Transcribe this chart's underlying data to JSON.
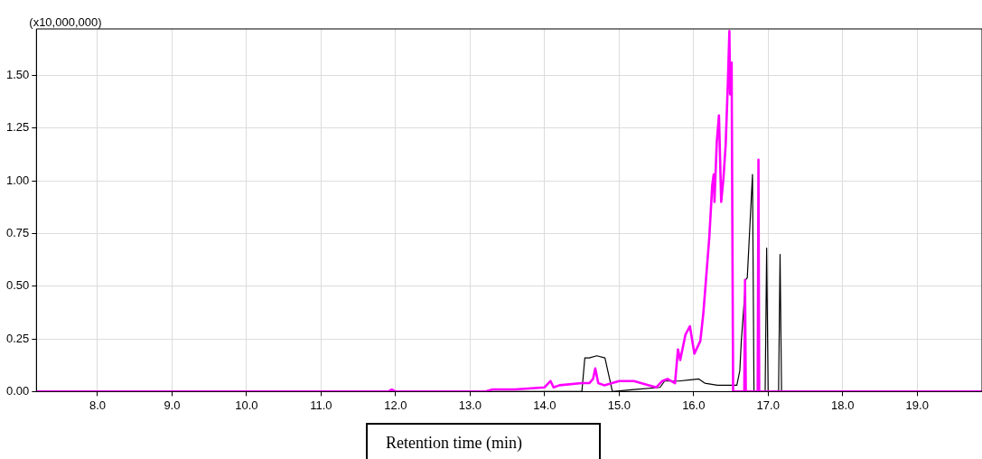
{
  "chart_data": {
    "type": "line",
    "ylabel": "(x10,000,000)",
    "xlabel": "Retention time (min)",
    "xlim": [
      7.18,
      19.87
    ],
    "ylim": [
      0,
      1.72
    ],
    "xticks": [
      {
        "value": 8,
        "label": "8.0"
      },
      {
        "value": 9,
        "label": "9.0"
      },
      {
        "value": 10,
        "label": "10.0"
      },
      {
        "value": 11,
        "label": "11.0"
      },
      {
        "value": 12,
        "label": "12.0"
      },
      {
        "value": 13,
        "label": "13.0"
      },
      {
        "value": 14,
        "label": "14.0"
      },
      {
        "value": 15,
        "label": "15.0"
      },
      {
        "value": 16,
        "label": "16.0"
      },
      {
        "value": 17,
        "label": "17.0"
      },
      {
        "value": 18,
        "label": "18.0"
      },
      {
        "value": 19,
        "label": "19.0"
      }
    ],
    "yticks": [
      {
        "value": 0,
        "label": "0.00"
      },
      {
        "value": 0.25,
        "label": "0.25"
      },
      {
        "value": 0.5,
        "label": "0.50"
      },
      {
        "value": 0.75,
        "label": "0.75"
      },
      {
        "value": 1,
        "label": "1.00"
      },
      {
        "value": 1.25,
        "label": "1.25"
      },
      {
        "value": 1.5,
        "label": "1.50"
      }
    ],
    "grid": true,
    "series": [
      {
        "color": "#ff00ff",
        "x": [
          7.18,
          11.9,
          11.95,
          12.0,
          13.2,
          13.3,
          13.6,
          14.0,
          14.08,
          14.12,
          14.2,
          14.5,
          14.6,
          14.65,
          14.68,
          14.72,
          14.8,
          15.0,
          15.2,
          15.4,
          15.5,
          15.58,
          15.65,
          15.75,
          15.79,
          15.82,
          15.89,
          15.95,
          16.01,
          16.09,
          16.13,
          16.17,
          16.21,
          16.25,
          16.27,
          16.28,
          16.31,
          16.34,
          16.37,
          16.4,
          16.43,
          16.46,
          16.48,
          16.49,
          16.5,
          16.51,
          16.53,
          16.68,
          16.69,
          16.7,
          16.86,
          16.87,
          16.88,
          19.87
        ],
        "values": [
          0,
          0,
          0.01,
          0,
          0,
          0.01,
          0.01,
          0.02,
          0.05,
          0.02,
          0.03,
          0.04,
          0.04,
          0.06,
          0.11,
          0.04,
          0.03,
          0.05,
          0.05,
          0.03,
          0.02,
          0.05,
          0.06,
          0.04,
          0.2,
          0.15,
          0.27,
          0.31,
          0.18,
          0.24,
          0.37,
          0.55,
          0.73,
          0.98,
          1.03,
          0.9,
          1.18,
          1.31,
          0.9,
          1.01,
          1.17,
          1.47,
          1.71,
          1.41,
          1.51,
          1.56,
          0,
          0,
          0.53,
          0,
          0,
          1.1,
          0,
          0
        ]
      },
      {
        "color": "#000000",
        "x": [
          7.18,
          13.0,
          14.5,
          14.54,
          14.6,
          14.7,
          14.81,
          14.91,
          15.2,
          15.55,
          15.61,
          15.8,
          16.07,
          16.15,
          16.32,
          16.58,
          16.62,
          16.64,
          16.7,
          16.72,
          16.79,
          16.81,
          16.96,
          16.98,
          17.0,
          17.14,
          17.16,
          17.18,
          19.87
        ],
        "values": [
          0,
          0,
          0,
          0.16,
          0.16,
          0.17,
          0.16,
          0,
          0.01,
          0.02,
          0.05,
          0.05,
          0.06,
          0.04,
          0.03,
          0.03,
          0.1,
          0.24,
          0.53,
          0.54,
          1.03,
          0,
          0,
          0.68,
          0,
          0,
          0.65,
          0,
          0
        ]
      }
    ]
  }
}
